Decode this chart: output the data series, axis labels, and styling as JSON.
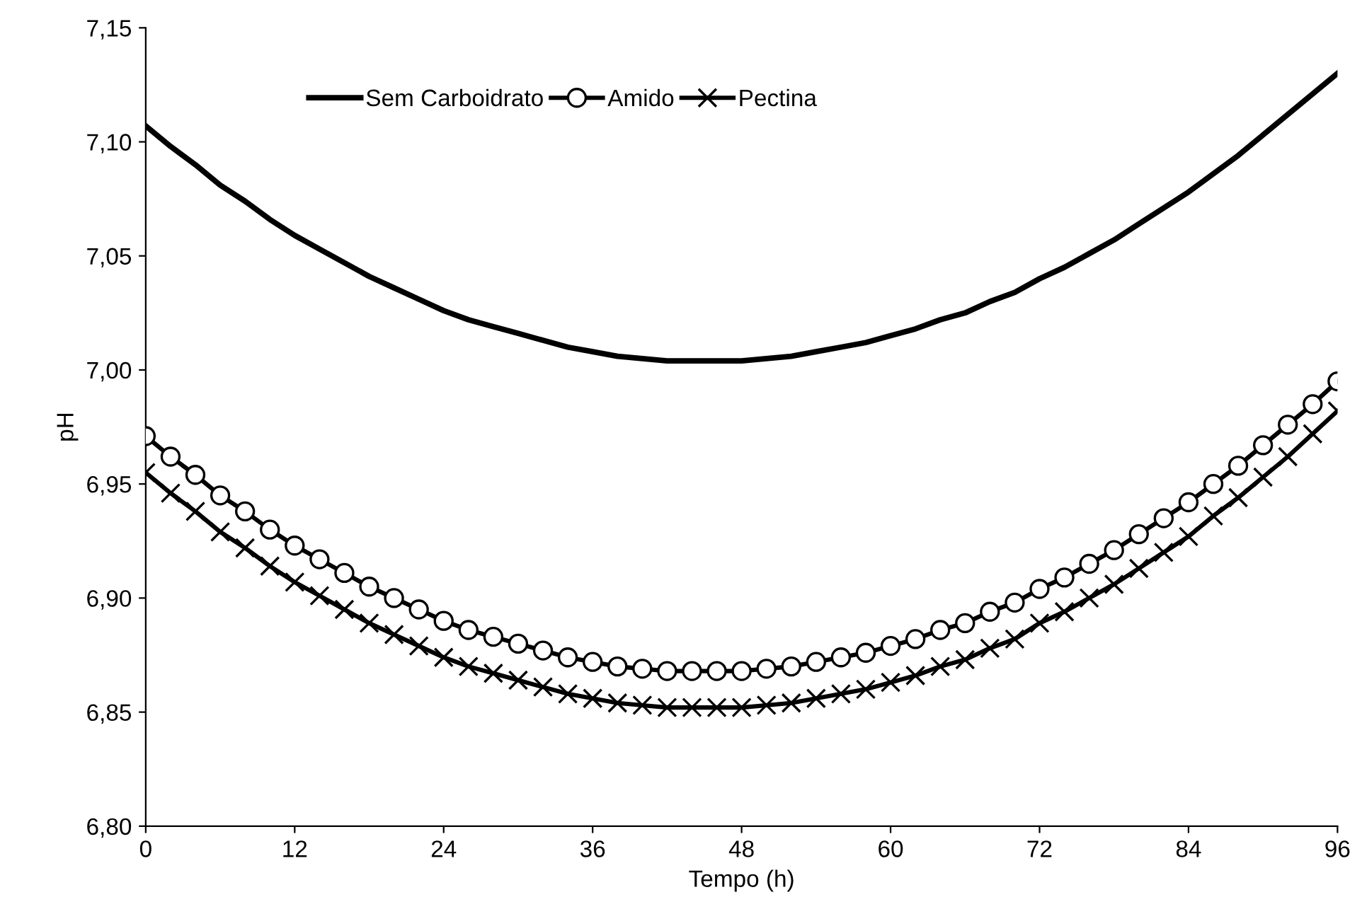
{
  "chart_data": {
    "type": "line",
    "xlabel": "Tempo (h)",
    "ylabel": "pH",
    "x": [
      0,
      2,
      4,
      6,
      8,
      10,
      12,
      14,
      16,
      18,
      20,
      22,
      24,
      26,
      28,
      30,
      32,
      34,
      36,
      38,
      40,
      42,
      44,
      46,
      48,
      50,
      52,
      54,
      56,
      58,
      60,
      62,
      64,
      66,
      68,
      70,
      72,
      74,
      76,
      78,
      80,
      82,
      84,
      86,
      88,
      90,
      92,
      94,
      96
    ],
    "series": [
      {
        "name": "Sem Carboidrato",
        "color": "#000000",
        "marker": "none",
        "values": [
          7.107,
          7.098,
          7.09,
          7.081,
          7.074,
          7.066,
          7.059,
          7.053,
          7.047,
          7.041,
          7.036,
          7.031,
          7.026,
          7.022,
          7.019,
          7.016,
          7.013,
          7.01,
          7.008,
          7.006,
          7.005,
          7.004,
          7.004,
          7.004,
          7.004,
          7.005,
          7.006,
          7.008,
          7.01,
          7.012,
          7.015,
          7.018,
          7.022,
          7.025,
          7.03,
          7.034,
          7.04,
          7.045,
          7.051,
          7.057,
          7.064,
          7.071,
          7.078,
          7.086,
          7.094,
          7.103,
          7.112,
          7.121,
          7.13
        ]
      },
      {
        "name": "Amido",
        "color": "#000000",
        "marker": "circle",
        "values": [
          6.971,
          6.962,
          6.954,
          6.945,
          6.938,
          6.93,
          6.923,
          6.917,
          6.911,
          6.905,
          6.9,
          6.895,
          6.89,
          6.886,
          6.883,
          6.88,
          6.877,
          6.874,
          6.872,
          6.87,
          6.869,
          6.868,
          6.868,
          6.868,
          6.868,
          6.869,
          6.87,
          6.872,
          6.874,
          6.876,
          6.879,
          6.882,
          6.886,
          6.889,
          6.894,
          6.898,
          6.904,
          6.909,
          6.915,
          6.921,
          6.928,
          6.935,
          6.942,
          6.95,
          6.958,
          6.967,
          6.976,
          6.985,
          6.995
        ]
      },
      {
        "name": "Pectina",
        "color": "#000000",
        "marker": "cross",
        "values": [
          6.955,
          6.946,
          6.938,
          6.929,
          6.922,
          6.914,
          6.907,
          6.901,
          6.895,
          6.889,
          6.884,
          6.879,
          6.874,
          6.87,
          6.867,
          6.864,
          6.861,
          6.858,
          6.856,
          6.854,
          6.853,
          6.852,
          6.852,
          6.852,
          6.852,
          6.853,
          6.854,
          6.856,
          6.858,
          6.86,
          6.863,
          6.866,
          6.87,
          6.873,
          6.878,
          6.882,
          6.889,
          6.894,
          6.9,
          6.906,
          6.913,
          6.92,
          6.927,
          6.936,
          6.944,
          6.953,
          6.962,
          6.972,
          6.982
        ]
      }
    ],
    "xlim": [
      0,
      96
    ],
    "xticks": [
      0,
      12,
      24,
      36,
      48,
      60,
      72,
      84,
      96
    ],
    "ylim": [
      6.8,
      7.15
    ],
    "yticks": [
      {
        "value": 6.8,
        "label": "6,80"
      },
      {
        "value": 6.85,
        "label": "6,85"
      },
      {
        "value": 6.9,
        "label": "6,90"
      },
      {
        "value": 6.95,
        "label": "6,95"
      },
      {
        "value": 7.0,
        "label": "7,00"
      },
      {
        "value": 7.05,
        "label": "7,05"
      },
      {
        "value": 7.1,
        "label": "7,10"
      },
      {
        "value": 7.15,
        "label": "7,15"
      }
    ],
    "grid": false,
    "legend": "top"
  }
}
